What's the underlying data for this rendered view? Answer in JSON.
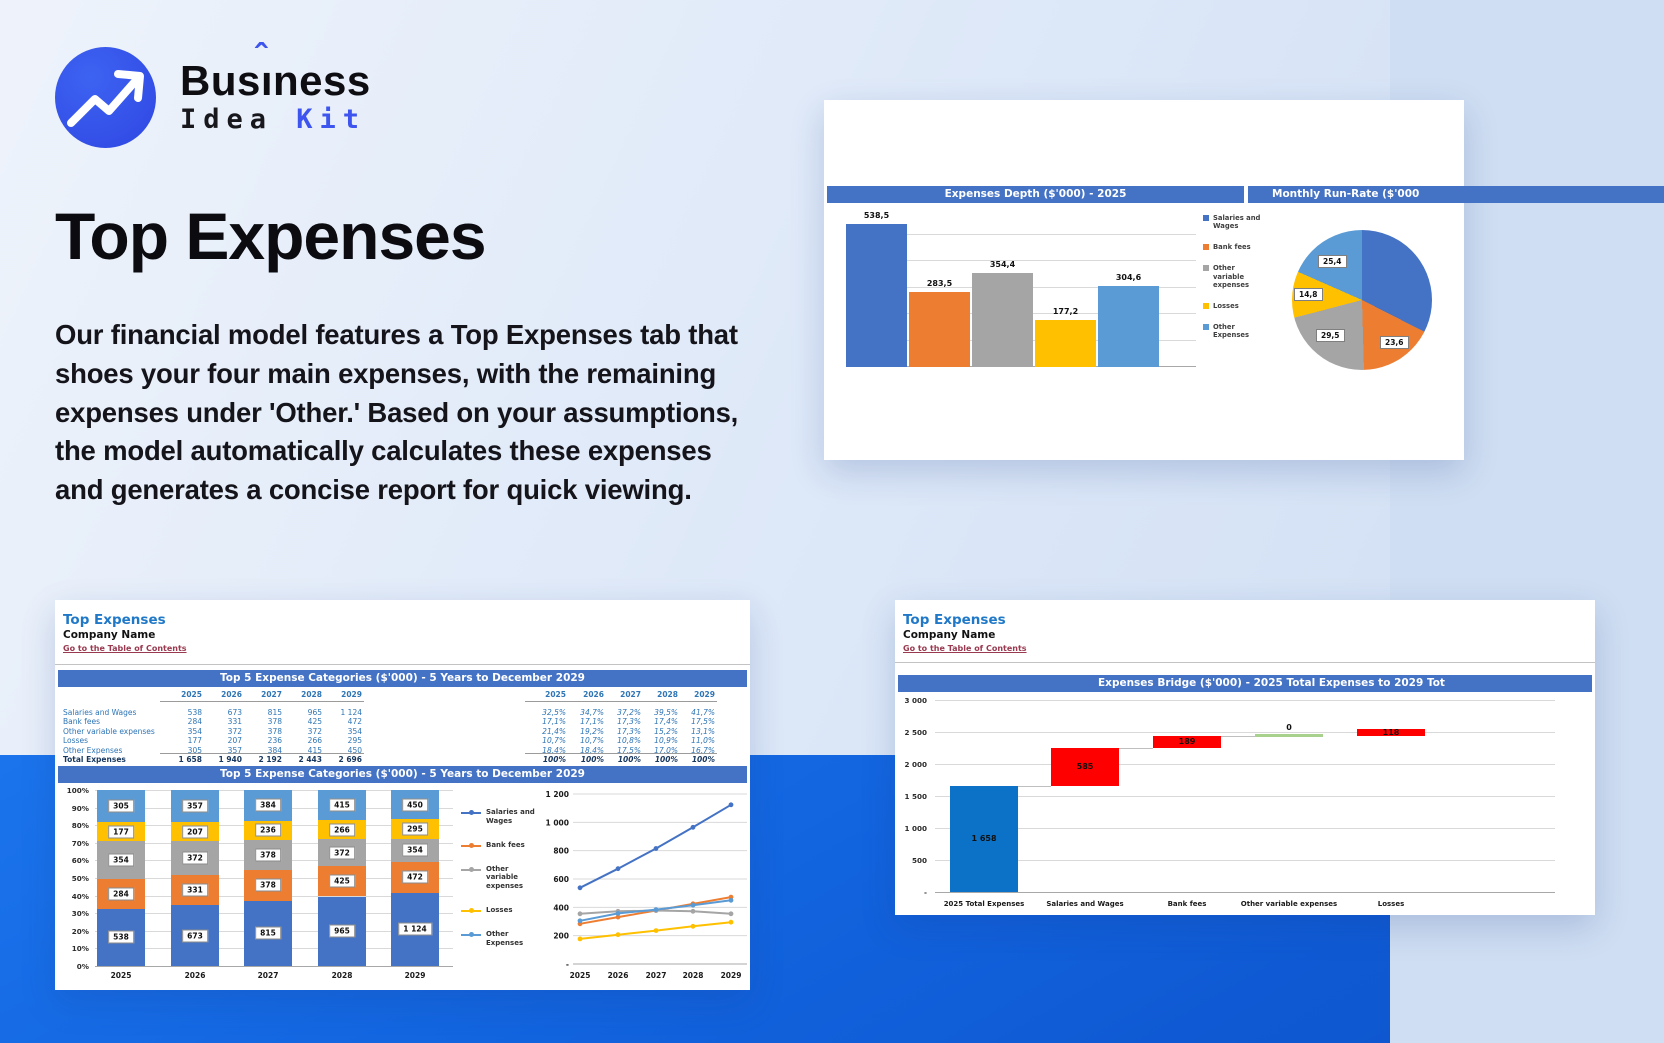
{
  "logo": {
    "brand_pre": "Bus",
    "brand_i": "ı",
    "brand_caret": "ˆ",
    "brand_post": "ness",
    "sub_black": "Idea",
    "sub_accent": "Kit"
  },
  "hero": {
    "title": "Top Expenses",
    "paragraph": "Our financial model features a Top Expenses tab that shoes your four main expenses, with the remaining expenses under 'Other.' Based on your assumptions, the model automatically calculates these expenses and generates a concise report for quick viewing."
  },
  "palette": {
    "banner_blue": "#4472C4",
    "series_blue": "#4472C4",
    "series_orange": "#ED7D31",
    "series_gray": "#A5A5A5",
    "series_yellow": "#FFC000",
    "series_lightblue": "#5B9BD5",
    "waterfall_blue": "#0B72C8",
    "waterfall_red": "#FF0000",
    "waterfall_green": "#A9D18E",
    "band_blue": "#1263DE",
    "sheet_title_blue": "#1F78C8",
    "table_blue": "#2E75B6",
    "table_navy": "#17375E",
    "link_maroon": "#993A50"
  },
  "runrate_panel": {
    "bar_banner": "Expenses Depth ($'000) - 2025",
    "pie_banner": "Monthly Run-Rate ($'000"
  },
  "sheet_panel": {
    "sheet_title": "Top Expenses",
    "company": "Company Name",
    "toc_link": "Go to the Table of Contents",
    "section_banner": "Top 5 Expense Categories ($'000) - 5 Years to December 2029",
    "chart_banner": "Top 5 Expense Categories ($'000) - 5 Years to December 2029",
    "table": {
      "years": [
        "2025",
        "2026",
        "2027",
        "2028",
        "2029"
      ],
      "rows": [
        {
          "label": "Salaries and Wages",
          "values": [
            "538",
            "673",
            "815",
            "965",
            "1 124"
          ],
          "pcts": [
            "32,5%",
            "34,7%",
            "37,2%",
            "39,5%",
            "41,7%"
          ]
        },
        {
          "label": "Bank fees",
          "values": [
            "284",
            "331",
            "378",
            "425",
            "472"
          ],
          "pcts": [
            "17,1%",
            "17,1%",
            "17,3%",
            "17,4%",
            "17,5%"
          ]
        },
        {
          "label": "Other variable expenses",
          "values": [
            "354",
            "372",
            "378",
            "372",
            "354"
          ],
          "pcts": [
            "21,4%",
            "19,2%",
            "17,3%",
            "15,2%",
            "13,1%"
          ]
        },
        {
          "label": "Losses",
          "values": [
            "177",
            "207",
            "236",
            "266",
            "295"
          ],
          "pcts": [
            "10,7%",
            "10,7%",
            "10,8%",
            "10,9%",
            "11,0%"
          ]
        },
        {
          "label": "Other Expenses",
          "values": [
            "305",
            "357",
            "384",
            "415",
            "450"
          ],
          "pcts": [
            "18,4%",
            "18,4%",
            "17,5%",
            "17,0%",
            "16,7%"
          ]
        }
      ],
      "total": {
        "label": "Total Expenses",
        "values": [
          "1 658",
          "1 940",
          "2 192",
          "2 443",
          "2 696"
        ],
        "pcts": [
          "100%",
          "100%",
          "100%",
          "100%",
          "100%"
        ]
      }
    }
  },
  "bridge_panel": {
    "sheet_title": "Top Expenses",
    "company": "Company Name",
    "toc_link": "Go to the Table of Contents",
    "banner": "Expenses Bridge ($'000) - 2025 Total Expenses to 2029 Tot"
  },
  "chart_data": [
    {
      "id": "expenses-depth",
      "type": "bar",
      "title": "Expenses Depth ($'000) - 2025",
      "categories": [
        "Salaries and Wages",
        "Bank fees",
        "Other variable expenses",
        "Losses",
        "Other Expenses"
      ],
      "values": [
        538.5,
        283.5,
        354.4,
        177.2,
        304.6
      ],
      "labels": [
        "538,5",
        "283,5",
        "354,4",
        "177,2",
        "304,6"
      ],
      "colors": [
        "#4472C4",
        "#ED7D31",
        "#A5A5A5",
        "#FFC000",
        "#5B9BD5"
      ],
      "ylim": [
        0,
        600
      ],
      "gridline_step": 100,
      "grid": true,
      "legend_position": "right",
      "legend": [
        "Salaries and Wages",
        "Bank fees",
        "Other variable expenses",
        "Losses",
        "Other Expenses"
      ]
    },
    {
      "id": "monthly-run-rate",
      "type": "pie",
      "title": "Monthly Run-Rate ($'000",
      "slices": [
        {
          "name": "Salaries and Wages",
          "value": 44.9,
          "label": "",
          "color": "#4472C4"
        },
        {
          "name": "Bank fees",
          "value": 23.6,
          "label": "23,6",
          "color": "#ED7D31"
        },
        {
          "name": "Other variable expenses",
          "value": 29.5,
          "label": "29,5",
          "color": "#A5A5A5"
        },
        {
          "name": "Losses",
          "value": 14.8,
          "label": "14,8",
          "color": "#FFC000"
        },
        {
          "name": "Other Expenses",
          "value": 25.4,
          "label": "25,4",
          "color": "#5B9BD5"
        }
      ],
      "start_angle": "12-oclock",
      "direction": "clockwise"
    },
    {
      "id": "top5-stacked",
      "type": "bar",
      "subtype": "stacked-100",
      "title": "Top 5 Expense Categories ($'000) - 5 Years to December 2029",
      "categories": [
        "2025",
        "2026",
        "2027",
        "2028",
        "2029"
      ],
      "series": [
        {
          "name": "Salaries and Wages",
          "color": "#4472C4",
          "values": [
            538,
            673,
            815,
            965,
            1124
          ],
          "labels": [
            "538",
            "673",
            "815",
            "965",
            "1 124"
          ]
        },
        {
          "name": "Bank fees",
          "color": "#ED7D31",
          "values": [
            284,
            331,
            378,
            425,
            472
          ],
          "labels": [
            "284",
            "331",
            "378",
            "425",
            "472"
          ]
        },
        {
          "name": "Other variable expenses",
          "color": "#A5A5A5",
          "values": [
            354,
            372,
            378,
            372,
            354
          ],
          "labels": [
            "354",
            "372",
            "378",
            "372",
            "354"
          ]
        },
        {
          "name": "Losses",
          "color": "#FFC000",
          "values": [
            177,
            207,
            236,
            266,
            295
          ],
          "labels": [
            "177",
            "207",
            "236",
            "266",
            "295"
          ]
        },
        {
          "name": "Other Expenses",
          "color": "#5B9BD5",
          "values": [
            305,
            357,
            384,
            415,
            450
          ],
          "labels": [
            "305",
            "357",
            "384",
            "415",
            "450"
          ]
        }
      ],
      "y_ticks": [
        "100%",
        "90%",
        "80%",
        "70%",
        "60%",
        "50%",
        "40%",
        "30%",
        "20%",
        "10%",
        "0%"
      ],
      "grid": true,
      "legend_position": "right"
    },
    {
      "id": "top5-lines",
      "type": "line",
      "categories": [
        "2025",
        "2026",
        "2027",
        "2028",
        "2029"
      ],
      "series": [
        {
          "name": "Salaries and Wages",
          "color": "#4472C4",
          "values": [
            538,
            673,
            815,
            965,
            1124
          ]
        },
        {
          "name": "Bank fees",
          "color": "#ED7D31",
          "values": [
            284,
            331,
            378,
            425,
            472
          ]
        },
        {
          "name": "Other variable expenses",
          "color": "#A5A5A5",
          "values": [
            354,
            372,
            378,
            372,
            354
          ]
        },
        {
          "name": "Losses",
          "color": "#FFC000",
          "values": [
            177,
            207,
            236,
            266,
            295
          ]
        },
        {
          "name": "Other Expenses",
          "color": "#5B9BD5",
          "values": [
            305,
            357,
            384,
            415,
            450
          ]
        }
      ],
      "y_ticks": [
        "1 200",
        "1 000",
        "800",
        "600",
        "400",
        "200",
        "-"
      ],
      "ylim": [
        0,
        1200
      ],
      "grid": true
    },
    {
      "id": "expenses-bridge",
      "type": "waterfall",
      "title": "Expenses Bridge ($'000) - 2025 Total Expenses to 2029 Tot",
      "categories": [
        "2025 Total Expenses",
        "Salaries and Wages",
        "Bank fees",
        "Other variable expenses",
        "Losses"
      ],
      "bars": [
        {
          "kind": "total",
          "value": 1658,
          "label": "1 658",
          "color": "#0B72C8"
        },
        {
          "kind": "increase",
          "value": 585,
          "label": "585",
          "color": "#FF0000"
        },
        {
          "kind": "increase",
          "value": 189,
          "label": "189",
          "color": "#FF0000"
        },
        {
          "kind": "zero",
          "value": 0,
          "label": "0",
          "color": "#A9D18E"
        },
        {
          "kind": "increase",
          "value": 118,
          "label": "118",
          "color": "#FF0000"
        }
      ],
      "y_ticks": [
        "3 000",
        "2 500",
        "2 000",
        "1 500",
        "1 000",
        "500",
        "-"
      ],
      "ylim": [
        0,
        3000
      ],
      "grid": true
    }
  ]
}
